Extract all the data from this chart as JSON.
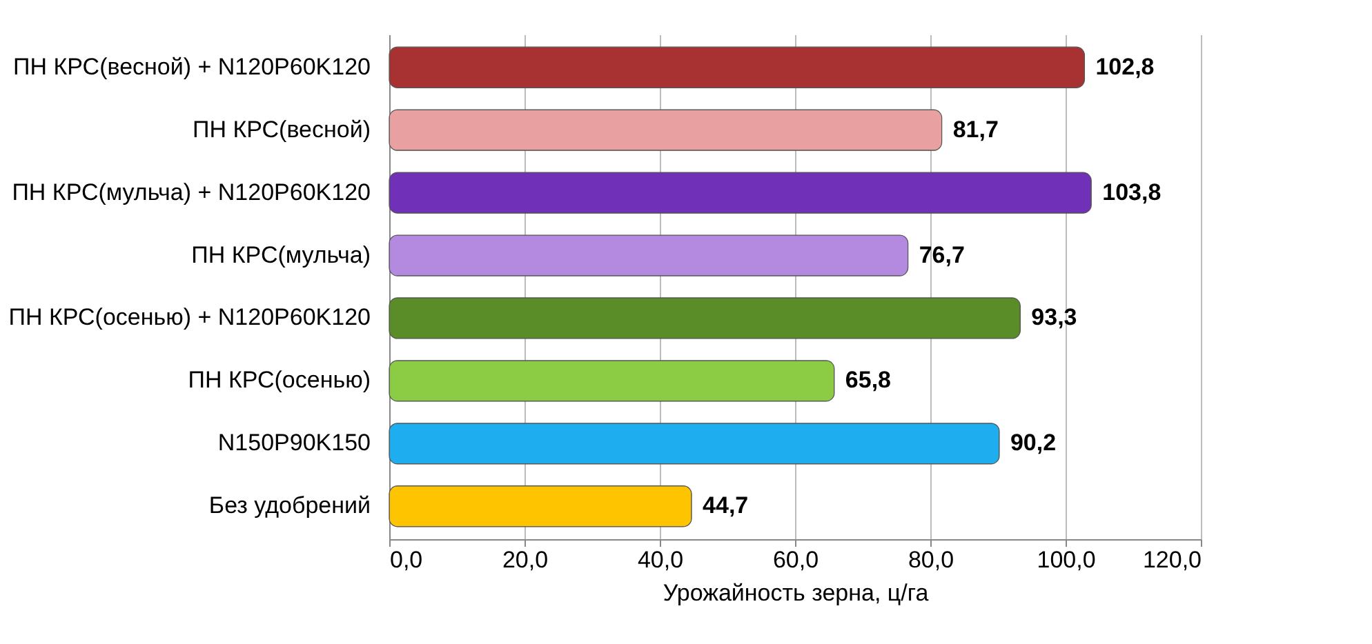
{
  "chart_data": {
    "type": "bar",
    "orientation": "horizontal",
    "xlabel": "Урожайность зерна, ц/га",
    "categories": [
      "ПН КРС(весной) + N120P60K120",
      "ПН КРС(весной)",
      "ПН КРС(мульча) + N120P60K120",
      "ПН КРС(мульча)",
      "ПН КРС(осенью) + N120P60K120",
      "ПН КРС(осенью)",
      "N150P90K150",
      "Без удобрений"
    ],
    "values": [
      102.8,
      81.7,
      103.8,
      76.7,
      93.3,
      65.8,
      90.2,
      44.7
    ],
    "value_labels": [
      "102,8",
      "81,7",
      "103,8",
      "76,7",
      "93,3",
      "65,8",
      "90,2",
      "44,7"
    ],
    "colors": [
      "#a83232",
      "#e8a0a0",
      "#7030b8",
      "#b48ae0",
      "#5a8c28",
      "#8ccc44",
      "#1eaef0",
      "#ffc400"
    ],
    "xlim": [
      0,
      120
    ],
    "xticks": [
      {
        "value": 0,
        "label": "0,0"
      },
      {
        "value": 20,
        "label": "20,0"
      },
      {
        "value": 40,
        "label": "40,0"
      },
      {
        "value": 60,
        "label": "60,0"
      },
      {
        "value": 80,
        "label": "80,0"
      },
      {
        "value": 100,
        "label": "100,0"
      },
      {
        "value": 120,
        "label": "120,0"
      }
    ],
    "grid": "x"
  }
}
